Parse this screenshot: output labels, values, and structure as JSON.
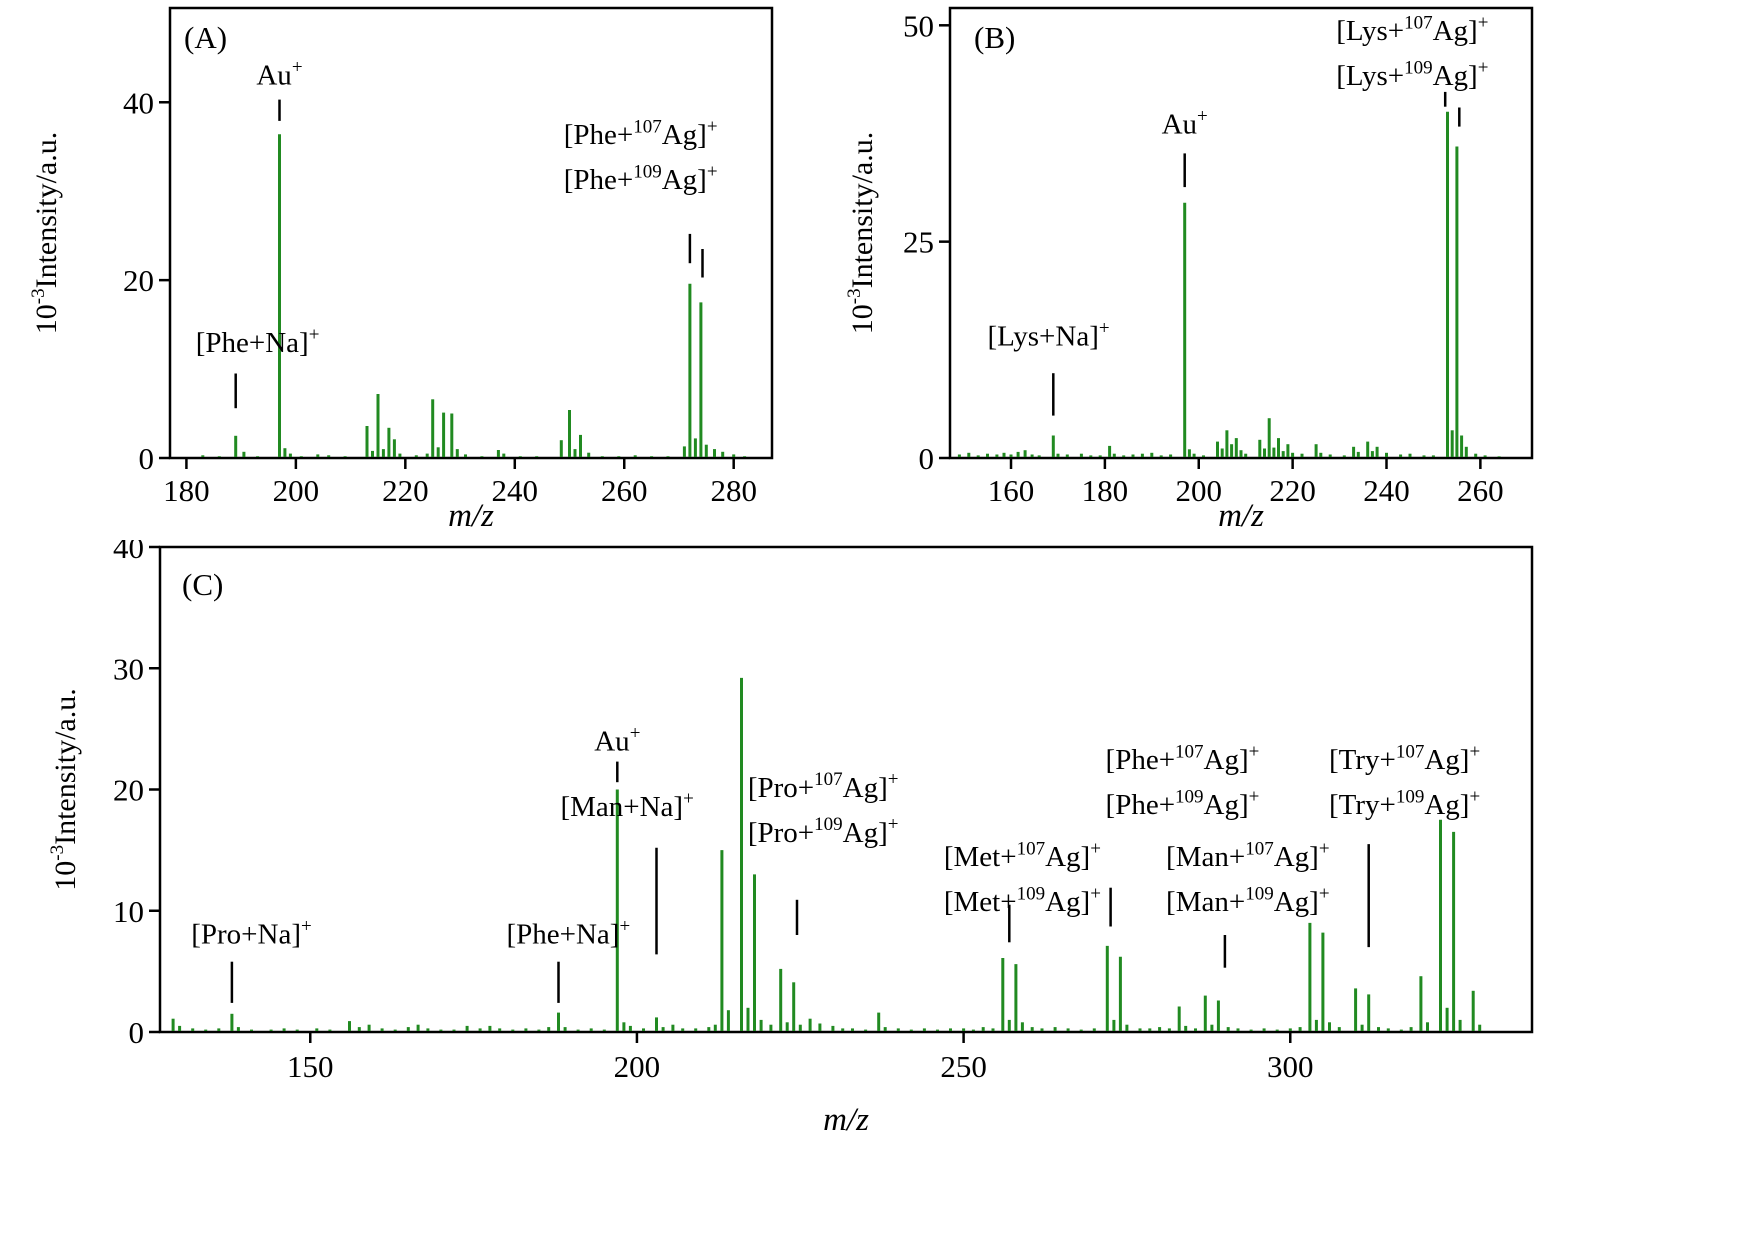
{
  "figure": {
    "peak_color": "#218a21",
    "axis_color": "#000000",
    "text_color": "#000000",
    "background": "#ffffff"
  },
  "chart_data": [
    {
      "id": "A",
      "type": "bar",
      "panel_label": "(A)",
      "xlabel": "m/z",
      "ylabel": "10^{-3}Intensity/a.u.",
      "xlim": [
        177,
        287
      ],
      "ylim": [
        0,
        50.6
      ],
      "xticks": [
        180,
        200,
        220,
        240,
        260,
        280
      ],
      "yticks": [
        0,
        20,
        40
      ],
      "peaks": [
        [
          183,
          0.3
        ],
        [
          186,
          0.2
        ],
        [
          189,
          2.5
        ],
        [
          190.5,
          0.7
        ],
        [
          193,
          0.2
        ],
        [
          197,
          36.4
        ],
        [
          198,
          1.1
        ],
        [
          199,
          0.5
        ],
        [
          201,
          0.2
        ],
        [
          204,
          0.4
        ],
        [
          206,
          0.3
        ],
        [
          209,
          0.2
        ],
        [
          213,
          3.6
        ],
        [
          214,
          0.8
        ],
        [
          215,
          7.2
        ],
        [
          216,
          1.0
        ],
        [
          217,
          3.4
        ],
        [
          218,
          2.1
        ],
        [
          219,
          0.5
        ],
        [
          222,
          0.3
        ],
        [
          224,
          0.5
        ],
        [
          225,
          6.6
        ],
        [
          226,
          1.2
        ],
        [
          227,
          5.1
        ],
        [
          228.5,
          5.0
        ],
        [
          229.5,
          1.0
        ],
        [
          231,
          0.4
        ],
        [
          234,
          0.2
        ],
        [
          237,
          0.9
        ],
        [
          238,
          0.5
        ],
        [
          241,
          0.2
        ],
        [
          244,
          0.2
        ],
        [
          248.5,
          2.0
        ],
        [
          250,
          5.4
        ],
        [
          251,
          1.0
        ],
        [
          252,
          2.6
        ],
        [
          253.5,
          0.6
        ],
        [
          256,
          0.2
        ],
        [
          259,
          0.2
        ],
        [
          262,
          0.3
        ],
        [
          265,
          0.2
        ],
        [
          268,
          0.2
        ],
        [
          271,
          1.3
        ],
        [
          272,
          19.6
        ],
        [
          273,
          2.2
        ],
        [
          274,
          17.5
        ],
        [
          275,
          1.5
        ],
        [
          276.5,
          1.0
        ],
        [
          278,
          0.7
        ],
        [
          280,
          0.4
        ],
        [
          282,
          0.2
        ]
      ],
      "annotations": [
        {
          "lines": [
            "Au^{+}"
          ],
          "x": 197,
          "y": 42.0,
          "markers": [
            [
              197,
              40.3,
              37.9
            ]
          ]
        },
        {
          "lines": [
            "[Phe+Na]^{+}"
          ],
          "x": 193,
          "y": 11.9,
          "markers": [
            [
              189,
              9.5,
              5.6
            ]
          ]
        },
        {
          "lines": [
            "[Phe+^{107}Ag]^{+}",
            "[Phe+^{109}Ag]^{+}"
          ],
          "x": 263,
          "y": 35.3,
          "markers": [
            [
              272,
              25.2,
              21.9
            ],
            [
              274.3,
              23.5,
              20.3
            ]
          ]
        }
      ]
    },
    {
      "id": "B",
      "type": "bar",
      "panel_label": "(B)",
      "xlabel": "m/z",
      "ylabel": "10^{-3}Intensity/a.u.",
      "xlim": [
        147,
        271
      ],
      "ylim": [
        0,
        52
      ],
      "xticks": [
        160,
        180,
        200,
        220,
        240,
        260
      ],
      "yticks": [
        0,
        25,
        50
      ],
      "peaks": [
        [
          149,
          0.4
        ],
        [
          151,
          0.6
        ],
        [
          153,
          0.3
        ],
        [
          155,
          0.5
        ],
        [
          157,
          0.4
        ],
        [
          158.5,
          0.6
        ],
        [
          160,
          0.4
        ],
        [
          161.5,
          0.7
        ],
        [
          163,
          0.9
        ],
        [
          164.5,
          0.4
        ],
        [
          166,
          0.3
        ],
        [
          169,
          2.6
        ],
        [
          170,
          0.5
        ],
        [
          172,
          0.4
        ],
        [
          175,
          0.5
        ],
        [
          177,
          0.3
        ],
        [
          179,
          0.3
        ],
        [
          181,
          1.4
        ],
        [
          182,
          0.5
        ],
        [
          184,
          0.3
        ],
        [
          186,
          0.4
        ],
        [
          188,
          0.5
        ],
        [
          190,
          0.6
        ],
        [
          192,
          0.3
        ],
        [
          194,
          0.4
        ],
        [
          197,
          29.5
        ],
        [
          198,
          1.0
        ],
        [
          199,
          0.5
        ],
        [
          201,
          0.3
        ],
        [
          204,
          1.9
        ],
        [
          205,
          1.1
        ],
        [
          206,
          3.2
        ],
        [
          207,
          1.6
        ],
        [
          208,
          2.3
        ],
        [
          209,
          0.9
        ],
        [
          210,
          0.5
        ],
        [
          213,
          2.1
        ],
        [
          214,
          1.1
        ],
        [
          215,
          4.6
        ],
        [
          216,
          1.2
        ],
        [
          217,
          2.3
        ],
        [
          218,
          0.8
        ],
        [
          219,
          1.6
        ],
        [
          220,
          0.6
        ],
        [
          222,
          0.5
        ],
        [
          225,
          1.6
        ],
        [
          226,
          0.6
        ],
        [
          228,
          0.4
        ],
        [
          231,
          0.3
        ],
        [
          233,
          1.3
        ],
        [
          234,
          0.7
        ],
        [
          236,
          1.9
        ],
        [
          237,
          0.8
        ],
        [
          238,
          1.3
        ],
        [
          240,
          0.6
        ],
        [
          243,
          0.4
        ],
        [
          245,
          0.5
        ],
        [
          248,
          0.3
        ],
        [
          250,
          0.3
        ],
        [
          253,
          40
        ],
        [
          254,
          3.2
        ],
        [
          255,
          36
        ],
        [
          256,
          2.6
        ],
        [
          257,
          1.3
        ],
        [
          259,
          0.5
        ],
        [
          261,
          0.3
        ],
        [
          264,
          0.2
        ]
      ],
      "annotations": [
        {
          "lines": [
            "Au^{+}"
          ],
          "x": 197,
          "y": 37.5,
          "markers": [
            [
              197,
              35.2,
              31.3
            ]
          ]
        },
        {
          "lines": [
            "[Lys+Na]^{+}"
          ],
          "x": 168,
          "y": 13.0,
          "markers": [
            [
              169,
              9.8,
              4.9
            ]
          ]
        },
        {
          "lines": [
            "[Lys+^{107}Ag]^{+}",
            "[Lys+^{109}Ag]^{+}"
          ],
          "x": 245.5,
          "y": 48.3,
          "markers": [
            [
              252.5,
              42.3,
              40.6
            ],
            [
              255.5,
              40.5,
              38.3
            ]
          ]
        }
      ]
    },
    {
      "id": "C",
      "type": "bar",
      "panel_label": "(C)",
      "xlabel": "m/z",
      "ylabel": "10^{-3}Intensity/a.u.",
      "xlim": [
        127,
        337
      ],
      "ylim": [
        0,
        40
      ],
      "xticks": [
        150,
        200,
        250,
        300
      ],
      "yticks": [
        0,
        10,
        20,
        30,
        40
      ],
      "peaks": [
        [
          129,
          1.1
        ],
        [
          130,
          0.5
        ],
        [
          132,
          0.3
        ],
        [
          134,
          0.2
        ],
        [
          136,
          0.3
        ],
        [
          138,
          1.5
        ],
        [
          139,
          0.4
        ],
        [
          141,
          0.2
        ],
        [
          144,
          0.2
        ],
        [
          146,
          0.3
        ],
        [
          148,
          0.2
        ],
        [
          151,
          0.3
        ],
        [
          153,
          0.2
        ],
        [
          156,
          0.9
        ],
        [
          157.5,
          0.4
        ],
        [
          159,
          0.6
        ],
        [
          161,
          0.3
        ],
        [
          163,
          0.2
        ],
        [
          165,
          0.4
        ],
        [
          166.5,
          0.6
        ],
        [
          168,
          0.3
        ],
        [
          170,
          0.2
        ],
        [
          172,
          0.2
        ],
        [
          174,
          0.5
        ],
        [
          176,
          0.3
        ],
        [
          177.5,
          0.5
        ],
        [
          179,
          0.3
        ],
        [
          181,
          0.2
        ],
        [
          183,
          0.3
        ],
        [
          185,
          0.2
        ],
        [
          186.5,
          0.4
        ],
        [
          188,
          1.6
        ],
        [
          189,
          0.4
        ],
        [
          191,
          0.2
        ],
        [
          193,
          0.3
        ],
        [
          195,
          0.2
        ],
        [
          197,
          20
        ],
        [
          198,
          0.8
        ],
        [
          199,
          0.5
        ],
        [
          201,
          0.3
        ],
        [
          203,
          1.2
        ],
        [
          204,
          0.4
        ],
        [
          205.5,
          0.6
        ],
        [
          207,
          0.3
        ],
        [
          209,
          0.3
        ],
        [
          211,
          0.4
        ],
        [
          212,
          0.6
        ],
        [
          213,
          15
        ],
        [
          214,
          1.8
        ],
        [
          216,
          29.2
        ],
        [
          217,
          2.0
        ],
        [
          218,
          13
        ],
        [
          219,
          1.0
        ],
        [
          220.5,
          0.6
        ],
        [
          222,
          5.2
        ],
        [
          223,
          0.8
        ],
        [
          224,
          4.1
        ],
        [
          225,
          0.6
        ],
        [
          226.5,
          1.1
        ],
        [
          228,
          0.7
        ],
        [
          230,
          0.5
        ],
        [
          231.5,
          0.3
        ],
        [
          233,
          0.3
        ],
        [
          235,
          0.2
        ],
        [
          237,
          1.6
        ],
        [
          238,
          0.4
        ],
        [
          240,
          0.3
        ],
        [
          242,
          0.2
        ],
        [
          244,
          0.3
        ],
        [
          246,
          0.2
        ],
        [
          248,
          0.3
        ],
        [
          250,
          0.3
        ],
        [
          251.5,
          0.2
        ],
        [
          253,
          0.4
        ],
        [
          254.5,
          0.3
        ],
        [
          256,
          6.1
        ],
        [
          257,
          1.0
        ],
        [
          258,
          5.6
        ],
        [
          259,
          0.8
        ],
        [
          260.5,
          0.4
        ],
        [
          262,
          0.3
        ],
        [
          264,
          0.4
        ],
        [
          266,
          0.3
        ],
        [
          268,
          0.2
        ],
        [
          270,
          0.3
        ],
        [
          272,
          7.1
        ],
        [
          273,
          1.0
        ],
        [
          274,
          6.2
        ],
        [
          275,
          0.6
        ],
        [
          277,
          0.3
        ],
        [
          278.5,
          0.3
        ],
        [
          280,
          0.4
        ],
        [
          281.5,
          0.3
        ],
        [
          283,
          2.1
        ],
        [
          284,
          0.5
        ],
        [
          285.5,
          0.3
        ],
        [
          287,
          3.0
        ],
        [
          288,
          0.6
        ],
        [
          289,
          2.6
        ],
        [
          290.5,
          0.4
        ],
        [
          292,
          0.3
        ],
        [
          294,
          0.2
        ],
        [
          296,
          0.3
        ],
        [
          298,
          0.2
        ],
        [
          300,
          0.3
        ],
        [
          301.5,
          0.4
        ],
        [
          303,
          9.0
        ],
        [
          304,
          1.0
        ],
        [
          305,
          8.2
        ],
        [
          306,
          0.8
        ],
        [
          307.5,
          0.4
        ],
        [
          310,
          3.6
        ],
        [
          311,
          0.6
        ],
        [
          312,
          3.1
        ],
        [
          313.5,
          0.4
        ],
        [
          315,
          0.3
        ],
        [
          317,
          0.2
        ],
        [
          318.5,
          0.4
        ],
        [
          320,
          4.6
        ],
        [
          321,
          0.8
        ],
        [
          323,
          17.5
        ],
        [
          324,
          2.0
        ],
        [
          325,
          16.5
        ],
        [
          326,
          1.0
        ],
        [
          328,
          3.4
        ],
        [
          329,
          0.6
        ]
      ],
      "annotations": [
        {
          "lines": [
            "[Pro+Na]^{+}"
          ],
          "x": 141,
          "y": 7.3,
          "markers": [
            [
              138,
              5.8,
              2.4
            ]
          ]
        },
        {
          "lines": [
            "[Phe+Na]^{+}"
          ],
          "x": 189.5,
          "y": 7.3,
          "markers": [
            [
              188,
              5.8,
              2.4
            ]
          ]
        },
        {
          "lines": [
            "Au^{+}"
          ],
          "x": 197,
          "y": 23.2,
          "markers": [
            [
              197,
              22.3,
              20.6
            ]
          ]
        },
        {
          "lines": [
            "[Man+Na]^{+}"
          ],
          "x": 198.5,
          "y": 17.8,
          "markers": [
            [
              203,
              15.2,
              6.4
            ]
          ]
        },
        {
          "lines": [
            "[Pro+^{107}Ag]^{+}",
            "[Pro+^{109}Ag]^{+}"
          ],
          "x": 228.5,
          "y": 19.4,
          "markers": [
            [
              224.5,
              10.9,
              8.0
            ]
          ]
        },
        {
          "lines": [
            "[Met+^{107}Ag]^{+}",
            "[Met+^{109}Ag]^{+}"
          ],
          "x": 259,
          "y": 13.7,
          "markers": [
            [
              257,
              10.5,
              7.4
            ]
          ]
        },
        {
          "lines": [
            "[Phe+^{107}Ag]^{+}",
            "[Phe+^{109}Ag]^{+}"
          ],
          "x": 283.5,
          "y": 21.7,
          "markers": [
            [
              272.5,
              11.9,
              8.7
            ]
          ]
        },
        {
          "lines": [
            "[Man+^{107}Ag]^{+}",
            "[Man+^{109}Ag]^{+}"
          ],
          "x": 293.5,
          "y": 13.7,
          "markers": [
            [
              290,
              8.0,
              5.3
            ]
          ]
        },
        {
          "lines": [
            "[Try+^{107}Ag]^{+}",
            "[Try+^{109}Ag]^{+}"
          ],
          "x": 317.5,
          "y": 21.7,
          "markers": [
            [
              312,
              15.5,
              7.0
            ]
          ]
        }
      ]
    }
  ]
}
